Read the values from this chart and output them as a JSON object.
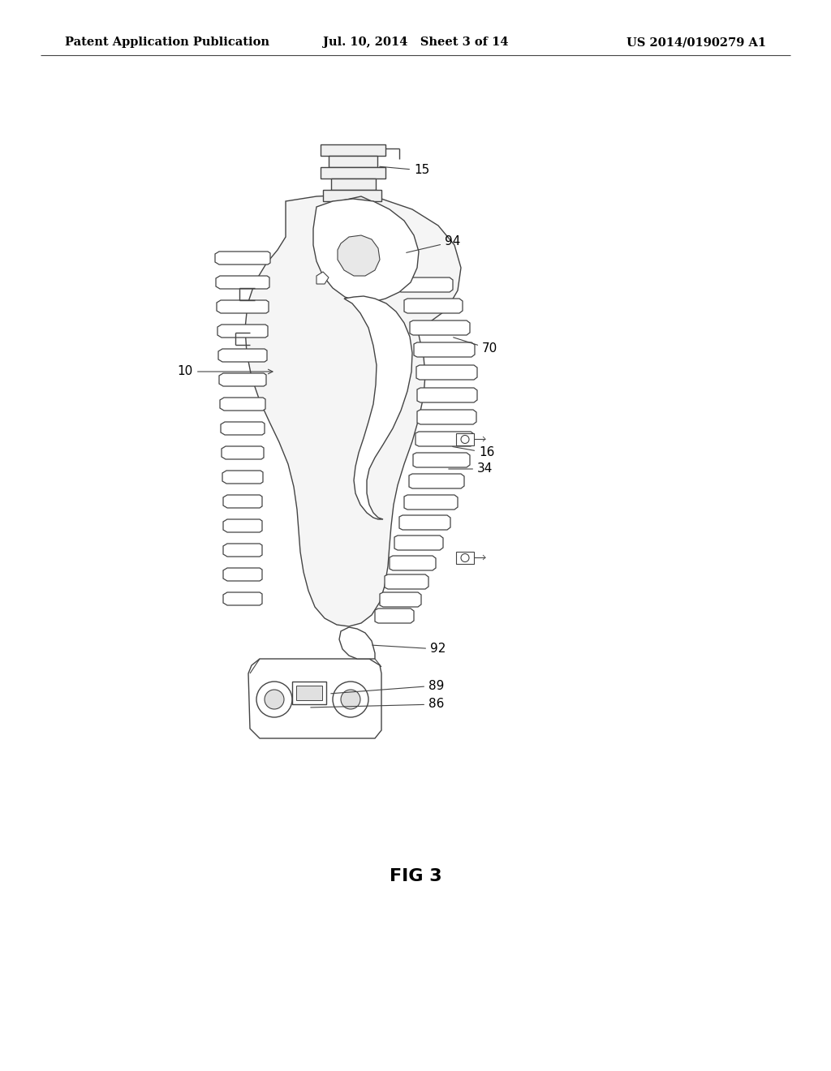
{
  "background_color": "#ffffff",
  "header_left": "Patent Application Publication",
  "header_center": "Jul. 10, 2014   Sheet 3 of 14",
  "header_right": "US 2014/0190279 A1",
  "figure_label": "FIG 3",
  "line_color": "#444444",
  "line_width": 1.0
}
